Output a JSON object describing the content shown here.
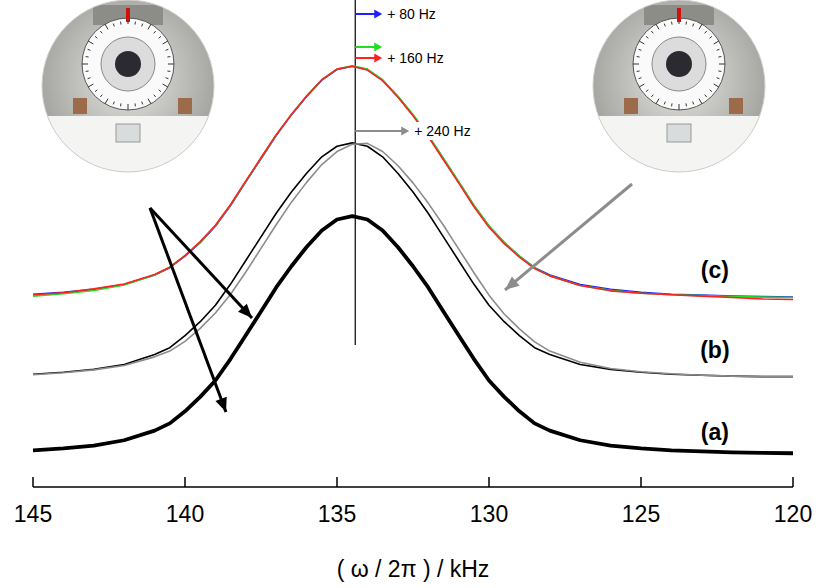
{
  "chart_data": {
    "type": "line",
    "xlabel": "( ω / 2π ) / kHz",
    "xlim": [
      145,
      120
    ],
    "xticks": [
      145,
      140,
      135,
      130,
      125,
      120
    ],
    "ylim": [
      0,
      100
    ],
    "tick_labels": "x",
    "grid": false,
    "x": [
      145,
      144,
      143,
      142,
      141,
      140.5,
      140,
      139.5,
      139,
      138.5,
      138,
      137.5,
      137,
      136.5,
      136,
      135.5,
      135,
      134.5,
      134,
      133.5,
      133,
      132.5,
      132,
      131.5,
      131,
      130.5,
      130,
      129.5,
      129,
      128.5,
      128,
      127,
      126,
      125,
      124,
      123,
      122,
      121,
      120
    ],
    "series": [
      {
        "color": "#1f1fff",
        "line_style": "solid",
        "values": [
          40.0,
          40.4,
          41.0,
          42.0,
          44.0,
          45.5,
          47.9,
          50.7,
          54.1,
          58.4,
          63.3,
          68.1,
          72.9,
          77.2,
          81.0,
          84.4,
          86.6,
          87.3,
          86.6,
          84.4,
          81.0,
          77.2,
          72.9,
          68.1,
          63.3,
          58.4,
          54.1,
          50.7,
          47.9,
          45.5,
          44.0,
          42.0,
          41.0,
          40.4,
          40.0,
          39.8,
          39.6,
          39.5,
          39.4
        ]
      },
      {
        "color": "#22dd22",
        "line_style": "solid",
        "values": [
          39.6,
          40.1,
          40.8,
          41.9,
          44.0,
          45.6,
          48.0,
          50.8,
          54.2,
          58.5,
          63.4,
          68.2,
          73.0,
          77.3,
          81.1,
          84.5,
          86.7,
          87.4,
          86.7,
          84.5,
          81.1,
          77.3,
          73.0,
          68.2,
          63.4,
          58.5,
          54.2,
          50.8,
          47.9,
          45.4,
          43.8,
          41.8,
          40.8,
          40.2,
          39.9,
          39.7,
          39.5,
          39.4,
          39.3
        ]
      },
      {
        "color": "#ff2020",
        "line_style": "solid",
        "values": [
          39.9,
          40.3,
          41.1,
          42.1,
          44.1,
          45.6,
          48.0,
          50.9,
          54.3,
          58.6,
          63.5,
          68.3,
          73.1,
          77.3,
          81.1,
          84.5,
          86.7,
          87.3,
          86.5,
          84.3,
          80.9,
          77.0,
          72.7,
          67.9,
          63.1,
          58.2,
          53.9,
          50.5,
          47.7,
          45.3,
          43.8,
          41.8,
          40.7,
          40.2,
          39.9,
          39.6,
          39.3,
          39.0,
          38.9
        ]
      },
      {
        "color": "#000000",
        "line_style": "solid",
        "values": [
          23.4,
          23.8,
          24.4,
          25.4,
          27.5,
          28.9,
          31.4,
          34.3,
          37.7,
          42.1,
          47.0,
          51.9,
          56.8,
          61.2,
          65.1,
          68.5,
          70.7,
          71.4,
          70.7,
          68.5,
          65.1,
          61.2,
          56.8,
          51.9,
          47.0,
          42.1,
          37.7,
          34.3,
          31.4,
          28.9,
          27.5,
          25.4,
          24.4,
          23.8,
          23.4,
          23.2,
          23.0,
          22.9,
          22.9
        ]
      },
      {
        "color": "#8c8c8c",
        "line_style": "solid",
        "values": [
          23.3,
          23.7,
          24.3,
          25.2,
          27.0,
          28.2,
          30.2,
          32.9,
          36.1,
          40.0,
          44.6,
          49.5,
          54.4,
          59.1,
          63.2,
          66.9,
          69.6,
          71.1,
          71.3,
          69.6,
          66.7,
          63.1,
          58.9,
          54.3,
          49.4,
          44.5,
          39.8,
          35.9,
          32.8,
          30.1,
          28.2,
          25.9,
          24.6,
          23.9,
          23.5,
          23.2,
          23.0,
          22.9,
          22.9
        ]
      },
      {
        "color": "#000000",
        "line_style": "bold",
        "values": [
          7.6,
          8.0,
          8.6,
          9.7,
          11.7,
          13.2,
          15.7,
          18.7,
          22.1,
          26.6,
          31.5,
          36.4,
          41.4,
          45.8,
          49.8,
          53.2,
          55.5,
          56.2,
          55.5,
          53.2,
          49.8,
          45.8,
          41.4,
          36.4,
          31.5,
          26.6,
          22.1,
          18.7,
          15.7,
          13.2,
          11.7,
          9.7,
          8.6,
          8.0,
          7.6,
          7.4,
          7.2,
          7.1,
          7.0
        ]
      }
    ],
    "marker_line": {
      "x": 134.4
    },
    "arrows": [
      {
        "color": "#1f1fff",
        "label": "+ 80 Hz"
      },
      {
        "color": "#22dd22"
      },
      {
        "color": "#ff2020",
        "label": "+ 160 Hz"
      },
      {
        "color": "#8c8c8c",
        "label": "+ 240 Hz"
      }
    ],
    "annotations": [
      {
        "text": "(c)",
        "x": 122.57,
        "y": 45.0
      },
      {
        "text": "(b)",
        "x": 122.57,
        "y": 28.4
      },
      {
        "text": "(a)",
        "x": 122.57,
        "y": 11.4
      }
    ]
  }
}
